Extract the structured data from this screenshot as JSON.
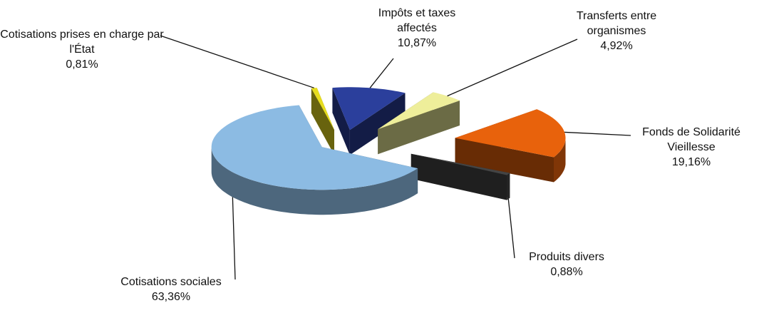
{
  "chart_data": {
    "type": "pie",
    "categories": [
      "Cotisations prises en charge par l'État",
      "Impôts et taxes affectés",
      "Transferts entre organismes",
      "Fonds de Solidarité Vieillesse",
      "Produits divers",
      "Cotisations sociales"
    ],
    "values": [
      0.81,
      10.87,
      4.92,
      19.16,
      0.88,
      63.36
    ],
    "value_labels": [
      "0,81%",
      "10,87%",
      "4,92%",
      "19,16%",
      "0,88%",
      "63,36%"
    ],
    "colors": [
      "#e6dc1e",
      "#2b3f9c",
      "#eeee9a",
      "#e8620c",
      "#444444",
      "#8cbbe3"
    ]
  }
}
